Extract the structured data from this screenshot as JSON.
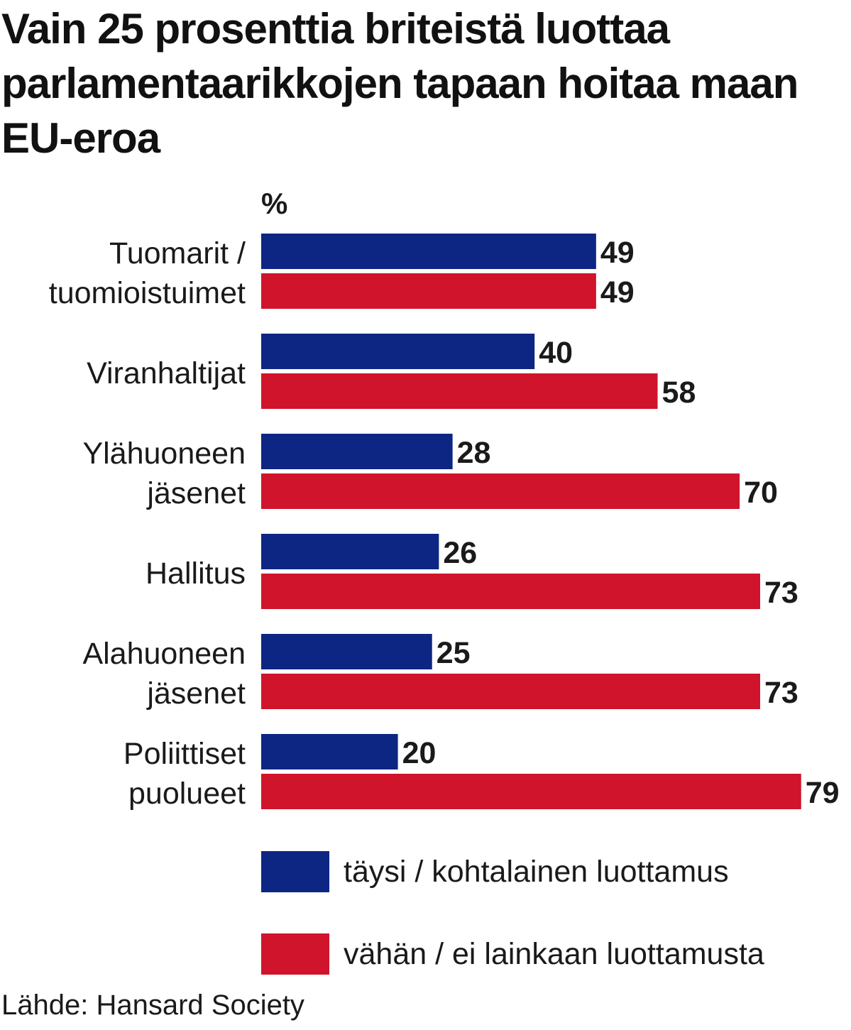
{
  "chart_data": {
    "type": "bar",
    "orientation": "horizontal",
    "title": "Vain 25 prosenttia briteistä luottaa parlamentaarikkojen tapaan hoitaa maan EU-eroa",
    "unit": "%",
    "categories": [
      [
        "Tuomarit /",
        "tuomioistuimet"
      ],
      [
        "Viranhaltijat"
      ],
      [
        "Ylähuoneen",
        "jäsenet"
      ],
      [
        "Hallitus"
      ],
      [
        "Alahuoneen",
        "jäsenet"
      ],
      [
        "Poliittiset",
        "puolueet"
      ]
    ],
    "series": [
      {
        "name": "täysi / kohtalainen luottamus",
        "color": "#0d2683",
        "values": [
          49,
          40,
          28,
          26,
          25,
          20
        ]
      },
      {
        "name": "vähän / ei lainkaan luottamusta",
        "color": "#cf142b",
        "values": [
          49,
          58,
          70,
          73,
          73,
          79
        ]
      }
    ],
    "xlim": [
      0,
      100
    ],
    "grid": false,
    "legend_position": "bottom"
  },
  "source": "Lähde: Hansard Society"
}
